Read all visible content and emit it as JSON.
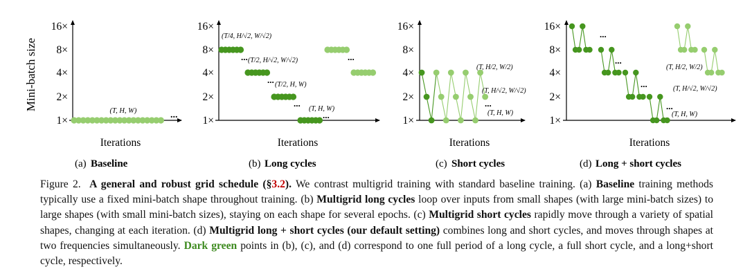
{
  "figure": {
    "ylabel": "Mini-batch size",
    "y_ticks": [
      "1×",
      "2×",
      "4×",
      "8×",
      "16×"
    ],
    "xlabel": "Iterations",
    "colors": {
      "light": "#96cd6f",
      "dark": "#46961f",
      "axis": "#000000"
    }
  },
  "panels": [
    {
      "tag": "(a)",
      "title": "Baseline",
      "annotations": [
        "(T, H, W)"
      ],
      "ellipses": [
        "..."
      ]
    },
    {
      "tag": "(b)",
      "title": "Long cycles",
      "annotations": [
        "(T/4, H/√2, W/√2)",
        "(T/2, H/√2, W/√2)",
        "(T/2, H, W)",
        "(T, H, W)"
      ],
      "ellipses": [
        "...",
        "...",
        "...",
        "...",
        "..."
      ]
    },
    {
      "tag": "(c)",
      "title": "Short cycles",
      "annotations": [
        "(T, H/2, W/2)",
        "(T, H/√2, W/√2)",
        "(T, H, W)"
      ],
      "ellipses": [
        "..."
      ]
    },
    {
      "tag": "(d)",
      "title": "Long + short cycles",
      "annotations": [
        "(T, H/2, W/2)",
        "(T, H/√2, W/√2)",
        "(T, H, W)"
      ],
      "ellipses": [
        "...",
        "...",
        "...",
        "..."
      ]
    }
  ],
  "caption": {
    "figure_label": "Figure 2.",
    "title": "A general and robust grid schedule",
    "ref_open": " (§",
    "ref": "3.2",
    "ref_close": ").",
    "t1": " We contrast multigrid training with standard baseline training. (a) ",
    "b1": "Baseline",
    "t2": " training methods typically use a fixed mini-batch shape throughout training. (b) ",
    "b2": "Multigrid long cycles",
    "t3": " loop over inputs from small shapes (with large mini-batch sizes) to large shapes (with small mini-batch sizes), staying on each shape for several epochs. (c) ",
    "b3": "Multigrid short cycles",
    "t4": " rapidly move through a variety of spatial shapes, changing at each iteration. (d) ",
    "b4": "Multigrid long + short cycles (our default setting)",
    "t5": " combines long and short cycles, and moves through shapes at two frequencies simultaneously. ",
    "dark_green": "Dark green",
    "t6": " points in (b), (c), and (d) correspond to one full period of a long cycle, a full short cycle, and a long+short cycle, respectively."
  }
}
